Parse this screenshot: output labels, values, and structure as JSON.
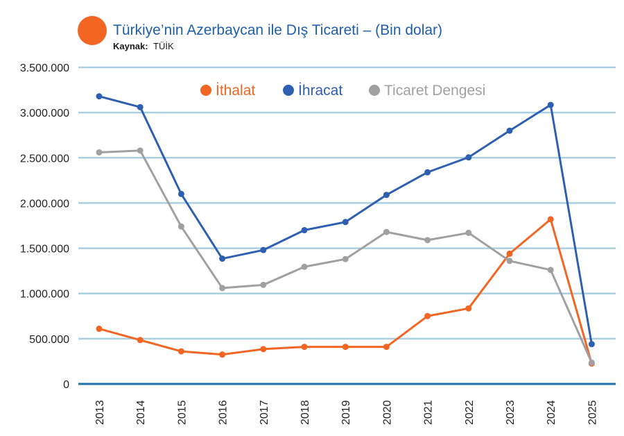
{
  "header": {
    "title": "Türkiye’nin Azerbaycan ile Dış Ticareti – (Bin dolar)",
    "source_key": "Kaynak:",
    "source_value": "TÜİK",
    "accent_color": "#f26522"
  },
  "chart_data": {
    "type": "line",
    "title": "Türkiye’nin Azerbaycan ile Dış Ticareti – (Bin dolar)",
    "x": [
      "2013",
      "2014",
      "2015",
      "2016",
      "2017",
      "2018",
      "2019",
      "2020",
      "2021",
      "2022",
      "2023",
      "2024",
      "2025"
    ],
    "ylim": [
      0,
      3500000
    ],
    "yticks": [
      0,
      500000,
      1000000,
      1500000,
      2000000,
      2500000,
      3000000,
      3500000
    ],
    "ytick_labels": [
      "0",
      "500.000",
      "1.000.000",
      "1.500.000",
      "2.000.000",
      "2.500.000",
      "3.000.000",
      "3.500.000"
    ],
    "grid": "horizontal",
    "legend_position": "top-center",
    "series": [
      {
        "name": "İthalat",
        "color": "#f26522",
        "values": [
          610000,
          485000,
          360000,
          325000,
          385000,
          410000,
          410000,
          410000,
          750000,
          835000,
          1440000,
          1820000,
          225000
        ]
      },
      {
        "name": "İhracat",
        "color": "#2e5fb0",
        "values": [
          3180000,
          3060000,
          2100000,
          1385000,
          1480000,
          1700000,
          1790000,
          2090000,
          2340000,
          2505000,
          2800000,
          3085000,
          440000
        ]
      },
      {
        "name": "Ticaret Dengesi",
        "color": "#a0a0a0",
        "values": [
          2560000,
          2580000,
          1740000,
          1060000,
          1095000,
          1295000,
          1380000,
          1680000,
          1590000,
          1670000,
          1360000,
          1260000,
          235000
        ]
      }
    ]
  }
}
